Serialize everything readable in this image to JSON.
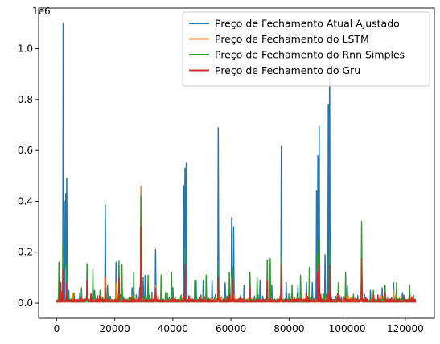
{
  "chart_data": {
    "type": "line",
    "title": "",
    "xlabel": "",
    "ylabel": "",
    "y_offset_text": "1e6",
    "xlim": [
      -6200,
      130000
    ],
    "ylim": [
      -0.06,
      1.16
    ],
    "x_ticks": [
      0,
      20000,
      40000,
      60000,
      80000,
      100000,
      120000
    ],
    "x_tick_labels": [
      "0",
      "20000",
      "40000",
      "60000",
      "80000",
      "100000",
      "120000"
    ],
    "y_ticks": [
      0.0,
      0.2,
      0.4,
      0.6,
      0.8,
      1.0
    ],
    "y_tick_labels": [
      "0.0",
      "0.2",
      "0.4",
      "0.6",
      "0.8",
      "1.0"
    ],
    "legend_position": "top-right",
    "x_range": [
      0,
      123500
    ],
    "baseline": 0.004,
    "series": [
      {
        "name": "Preço de Fechamento Atual Ajustado",
        "color": "#1f77b4",
        "peaks": [
          [
            1500,
            0.08
          ],
          [
            2200,
            1.1
          ],
          [
            2900,
            0.4
          ],
          [
            3200,
            0.43
          ],
          [
            3500,
            0.49
          ],
          [
            4200,
            0.05
          ],
          [
            8000,
            0.04
          ],
          [
            10500,
            0.05
          ],
          [
            13000,
            0.05
          ],
          [
            16800,
            0.385
          ],
          [
            17500,
            0.07
          ],
          [
            20500,
            0.16
          ],
          [
            22500,
            0.07
          ],
          [
            26000,
            0.06
          ],
          [
            28500,
            0.06
          ],
          [
            29800,
            0.1
          ],
          [
            30500,
            0.11
          ],
          [
            34000,
            0.21
          ],
          [
            36000,
            0.06
          ],
          [
            40000,
            0.06
          ],
          [
            43800,
            0.46
          ],
          [
            44200,
            0.53
          ],
          [
            44600,
            0.55
          ],
          [
            48000,
            0.09
          ],
          [
            50500,
            0.09
          ],
          [
            53500,
            0.09
          ],
          [
            55600,
            0.69
          ],
          [
            58000,
            0.08
          ],
          [
            60200,
            0.335
          ],
          [
            60900,
            0.3
          ],
          [
            64500,
            0.07
          ],
          [
            66500,
            0.12
          ],
          [
            70000,
            0.09
          ],
          [
            74000,
            0.07
          ],
          [
            77300,
            0.615
          ],
          [
            79000,
            0.08
          ],
          [
            83000,
            0.07
          ],
          [
            86000,
            0.08
          ],
          [
            88000,
            0.08
          ],
          [
            89500,
            0.44
          ],
          [
            89900,
            0.58
          ],
          [
            90300,
            0.695
          ],
          [
            92400,
            0.19
          ],
          [
            93500,
            0.78
          ],
          [
            94000,
            1.0
          ],
          [
            97000,
            0.08
          ],
          [
            100000,
            0.07
          ],
          [
            105000,
            0.18
          ],
          [
            108000,
            0.05
          ],
          [
            112000,
            0.06
          ],
          [
            116000,
            0.08
          ],
          [
            119000,
            0.04
          ],
          [
            121500,
            0.05
          ]
        ]
      },
      {
        "name": "Preço de Fechamento do LSTM",
        "color": "#ff7f0e",
        "peaks": [
          [
            2200,
            0.2
          ],
          [
            3400,
            0.12
          ],
          [
            16800,
            0.1
          ],
          [
            20500,
            0.08
          ],
          [
            29000,
            0.46
          ],
          [
            34000,
            0.07
          ],
          [
            44200,
            0.2
          ],
          [
            55600,
            0.12
          ],
          [
            60200,
            0.1
          ],
          [
            66500,
            0.08
          ],
          [
            77300,
            0.2
          ],
          [
            90300,
            0.15
          ],
          [
            94000,
            0.2
          ],
          [
            105000,
            0.19
          ],
          [
            116000,
            0.05
          ]
        ]
      },
      {
        "name": "Preço de Fechamento do Rnn Simples",
        "color": "#2ca02c",
        "peaks": [
          [
            800,
            0.16
          ],
          [
            2200,
            0.23
          ],
          [
            3400,
            0.15
          ],
          [
            6000,
            0.04
          ],
          [
            8500,
            0.06
          ],
          [
            10500,
            0.155
          ],
          [
            12500,
            0.13
          ],
          [
            15000,
            0.05
          ],
          [
            17500,
            0.07
          ],
          [
            21500,
            0.165
          ],
          [
            22500,
            0.15
          ],
          [
            26500,
            0.12
          ],
          [
            29000,
            0.42
          ],
          [
            31500,
            0.11
          ],
          [
            36000,
            0.11
          ],
          [
            39500,
            0.12
          ],
          [
            44200,
            0.22
          ],
          [
            47500,
            0.09
          ],
          [
            51500,
            0.11
          ],
          [
            55600,
            0.16
          ],
          [
            59500,
            0.12
          ],
          [
            60600,
            0.14
          ],
          [
            66500,
            0.12
          ],
          [
            69000,
            0.1
          ],
          [
            72500,
            0.17
          ],
          [
            73500,
            0.175
          ],
          [
            77300,
            0.23
          ],
          [
            81000,
            0.07
          ],
          [
            84000,
            0.11
          ],
          [
            87000,
            0.14
          ],
          [
            89800,
            0.19
          ],
          [
            90300,
            0.25
          ],
          [
            94000,
            0.25
          ],
          [
            97000,
            0.08
          ],
          [
            99500,
            0.12
          ],
          [
            105000,
            0.32
          ],
          [
            109000,
            0.05
          ],
          [
            113000,
            0.07
          ],
          [
            117000,
            0.08
          ],
          [
            121500,
            0.07
          ]
        ]
      },
      {
        "name": "Preço de Fechamento do Gru",
        "color": "#d62728",
        "peaks": [
          [
            1000,
            0.09
          ],
          [
            2200,
            0.13
          ],
          [
            3400,
            0.08
          ],
          [
            10500,
            0.09
          ],
          [
            16800,
            0.06
          ],
          [
            21500,
            0.1
          ],
          [
            29000,
            0.3
          ],
          [
            34000,
            0.06
          ],
          [
            44200,
            0.155
          ],
          [
            55600,
            0.1
          ],
          [
            60600,
            0.09
          ],
          [
            66500,
            0.06
          ],
          [
            72500,
            0.09
          ],
          [
            77300,
            0.155
          ],
          [
            89800,
            0.12
          ],
          [
            90300,
            0.15
          ],
          [
            94000,
            0.15
          ],
          [
            105000,
            0.175
          ],
          [
            113000,
            0.04
          ]
        ]
      }
    ]
  }
}
